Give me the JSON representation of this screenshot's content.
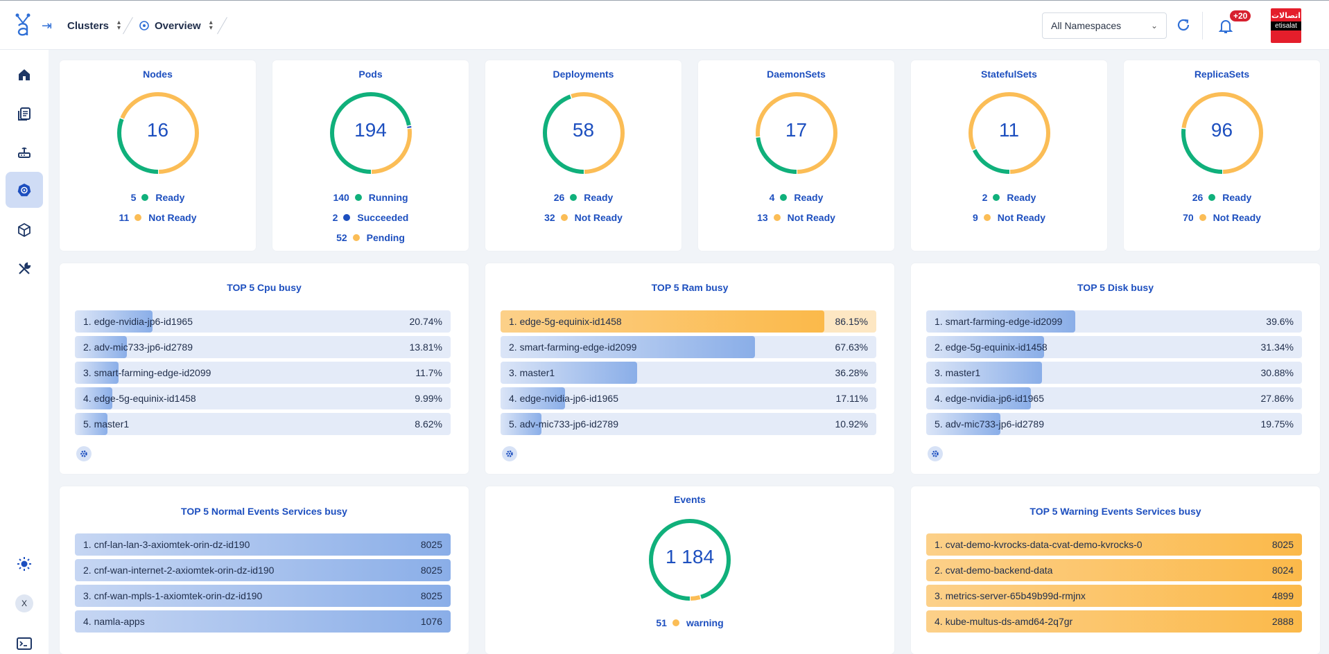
{
  "header": {
    "breadcrumb": [
      {
        "label": "Clusters"
      },
      {
        "label": "Overview"
      }
    ],
    "namespace_select": "All Namespaces",
    "notification_count": "+20",
    "brand_top": "اتصالات",
    "brand_name": "etisalat"
  },
  "sidebar": {
    "items": [
      "home",
      "documents",
      "router",
      "kubernetes",
      "package",
      "tools"
    ],
    "active": "kubernetes",
    "user_initial": "X"
  },
  "colors": {
    "green": "#10b07b",
    "orange": "#fbbd56",
    "blue": "#1d4fbf",
    "bar_blue": "#8aaee8",
    "bar_orange": "#fbb94a"
  },
  "stats": [
    {
      "title": "Nodes",
      "total": "16",
      "legend": [
        {
          "num": "5",
          "label": "Ready",
          "color": "#10b07b"
        },
        {
          "num": "11",
          "label": "Not Ready",
          "color": "#fbbd56"
        }
      ],
      "segments": [
        5,
        11
      ]
    },
    {
      "title": "Pods",
      "total": "194",
      "legend": [
        {
          "num": "140",
          "label": "Running",
          "color": "#10b07b"
        },
        {
          "num": "2",
          "label": "Succeeded",
          "color": "#1d4fbf"
        },
        {
          "num": "52",
          "label": "Pending",
          "color": "#fbbd56"
        }
      ],
      "segments": [
        140,
        2,
        52
      ]
    },
    {
      "title": "Deployments",
      "total": "58",
      "legend": [
        {
          "num": "26",
          "label": "Ready",
          "color": "#10b07b"
        },
        {
          "num": "32",
          "label": "Not Ready",
          "color": "#fbbd56"
        }
      ],
      "segments": [
        26,
        32
      ]
    },
    {
      "title": "DaemonSets",
      "total": "17",
      "legend": [
        {
          "num": "4",
          "label": "Ready",
          "color": "#10b07b"
        },
        {
          "num": "13",
          "label": "Not Ready",
          "color": "#fbbd56"
        }
      ],
      "segments": [
        4,
        13
      ]
    },
    {
      "title": "StatefulSets",
      "total": "11",
      "legend": [
        {
          "num": "2",
          "label": "Ready",
          "color": "#10b07b"
        },
        {
          "num": "9",
          "label": "Not Ready",
          "color": "#fbbd56"
        }
      ],
      "segments": [
        2,
        9
      ]
    },
    {
      "title": "ReplicaSets",
      "total": "96",
      "legend": [
        {
          "num": "26",
          "label": "Ready",
          "color": "#10b07b"
        },
        {
          "num": "70",
          "label": "Not Ready",
          "color": "#fbbd56"
        }
      ],
      "segments": [
        26,
        70
      ]
    }
  ],
  "top_cpu": {
    "title": "TOP 5 Cpu busy",
    "rows": [
      {
        "name": "1. edge-nvidia-jp6-id1965",
        "value": "20.74%",
        "pct": 20.74
      },
      {
        "name": "2. adv-mic733-jp6-id2789",
        "value": "13.81%",
        "pct": 13.81
      },
      {
        "name": "3. smart-farming-edge-id2099",
        "value": "11.7%",
        "pct": 11.7
      },
      {
        "name": "4. edge-5g-equinix-id1458",
        "value": "9.99%",
        "pct": 9.99
      },
      {
        "name": "5. master1",
        "value": "8.62%",
        "pct": 8.62
      }
    ]
  },
  "top_ram": {
    "title": "TOP 5 Ram busy",
    "rows": [
      {
        "name": "1. edge-5g-equinix-id1458",
        "value": "86.15%",
        "pct": 86.15,
        "warn": true
      },
      {
        "name": "2. smart-farming-edge-id2099",
        "value": "67.63%",
        "pct": 67.63
      },
      {
        "name": "3. master1",
        "value": "36.28%",
        "pct": 36.28
      },
      {
        "name": "4. edge-nvidia-jp6-id1965",
        "value": "17.11%",
        "pct": 17.11
      },
      {
        "name": "5. adv-mic733-jp6-id2789",
        "value": "10.92%",
        "pct": 10.92
      }
    ]
  },
  "top_disk": {
    "title": "TOP 5 Disk busy",
    "rows": [
      {
        "name": "1. smart-farming-edge-id2099",
        "value": "39.6%",
        "pct": 39.6
      },
      {
        "name": "2. edge-5g-equinix-id1458",
        "value": "31.34%",
        "pct": 31.34
      },
      {
        "name": "3. master1",
        "value": "30.88%",
        "pct": 30.88
      },
      {
        "name": "4. edge-nvidia-jp6-id1965",
        "value": "27.86%",
        "pct": 27.86
      },
      {
        "name": "5. adv-mic733-jp6-id2789",
        "value": "19.75%",
        "pct": 19.75
      }
    ]
  },
  "top_normal_events": {
    "title": "TOP 5 Normal Events Services busy",
    "rows": [
      {
        "name": "1. cnf-lan-lan-3-axiomtek-orin-dz-id190",
        "value": "8025",
        "pct": 100
      },
      {
        "name": "2. cnf-wan-internet-2-axiomtek-orin-dz-id190",
        "value": "8025",
        "pct": 100
      },
      {
        "name": "3. cnf-wan-mpls-1-axiomtek-orin-dz-id190",
        "value": "8025",
        "pct": 100
      },
      {
        "name": "4. namla-apps",
        "value": "1076",
        "pct": 100
      }
    ]
  },
  "events": {
    "title": "Events",
    "total": "1 184",
    "legend": [
      {
        "num": "51",
        "label": "warning",
        "color": "#fbbd56"
      }
    ],
    "segments": [
      1133,
      51
    ]
  },
  "top_warning_events": {
    "title": "TOP 5 Warning Events Services busy",
    "rows": [
      {
        "name": "1. cvat-demo-kvrocks-data-cvat-demo-kvrocks-0",
        "value": "8025",
        "pct": 100
      },
      {
        "name": "2. cvat-demo-backend-data",
        "value": "8024",
        "pct": 100
      },
      {
        "name": "3. metrics-server-65b49b99d-rmjnx",
        "value": "4899",
        "pct": 100
      },
      {
        "name": "4. kube-multus-ds-amd64-2q7gr",
        "value": "2888",
        "pct": 100
      }
    ]
  }
}
